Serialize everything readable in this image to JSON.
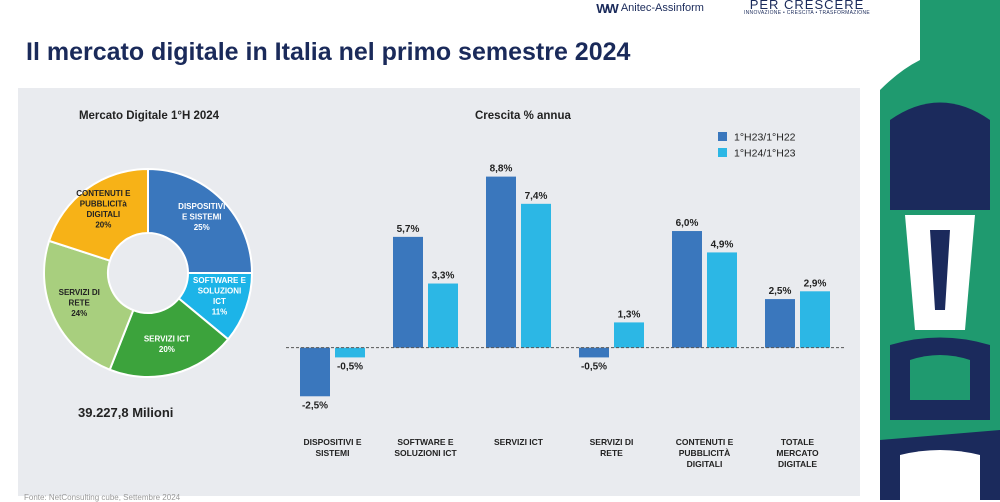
{
  "header": {
    "logo_anitec": "Anitec-Assinform",
    "logo_crescere": "PER CRESCERE",
    "logo_crescere_tagline": "INNOVAZIONE • CRESCITA • TRASFORMAZIONE"
  },
  "page_title": "Il mercato digitale in Italia nel primo semestre 2024",
  "colors": {
    "title": "#1a2a5a",
    "series_1": "#3a77bd",
    "series_2": "#2cb7e5",
    "panel_bg": "#e9ebef",
    "deco_green": "#1f9a6f",
    "deco_navy": "#1b2a5c"
  },
  "chart_data": [
    {
      "type": "pie",
      "title": "Mercato Digitale 1°H 2024",
      "total_label": "39.227,8 Milioni",
      "slices": [
        {
          "name": "DISPOSITIVI E SISTEMI",
          "value": 25,
          "label": "25%",
          "color": "#3a77bd"
        },
        {
          "name": "SOFTWARE E SOLUZIONI ICT",
          "value": 11,
          "label": "11%",
          "color": "#1cb4e8"
        },
        {
          "name": "SERVIZI ICT",
          "value": 20,
          "label": "20%",
          "color": "#3ca33c"
        },
        {
          "name": "SERVIZI DI RETE",
          "value": 24,
          "label": "24%",
          "color": "#a8cf7e"
        },
        {
          "name": "CONTENUTI E PUBBLICITà DIGITALI",
          "value": 20,
          "label": "20%",
          "color": "#f7b217"
        }
      ]
    },
    {
      "type": "bar",
      "title": "Crescita % annua",
      "categories": [
        "DISPOSITIVI E SISTEMI",
        "SOFTWARE E SOLUZIONI ICT",
        "SERVIZI ICT",
        "SERVIZI DI RETE",
        "CONTENUTI E PUBBLICITÀ DIGITALI",
        "TOTALE MERCATO DIGITALE"
      ],
      "series": [
        {
          "name": "1°H23/1°H22",
          "values": [
            -2.5,
            5.7,
            8.8,
            -0.5,
            6.0,
            2.5
          ],
          "labels": [
            "-2,5%",
            "5,7%",
            "8,8%",
            "-0,5%",
            "6,0%",
            "2,5%"
          ]
        },
        {
          "name": "1°H24/1°H23",
          "values": [
            -0.5,
            3.3,
            7.4,
            1.3,
            4.9,
            2.9
          ],
          "labels": [
            "-0,5%",
            "3,3%",
            "7,4%",
            "1,3%",
            "4,9%",
            "2,9%"
          ]
        }
      ],
      "ylim": [
        -3.0,
        9.5
      ],
      "grid": false,
      "legend": "top-right"
    }
  ],
  "footer": {
    "source": "Fonte: NetConsulting cube, Settembre 2024"
  }
}
